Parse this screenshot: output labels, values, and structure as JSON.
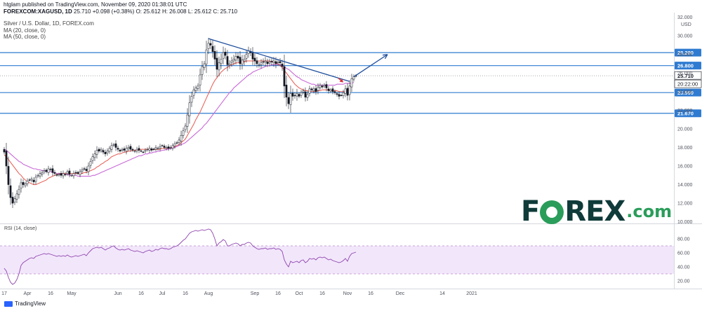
{
  "header": {
    "published": "htglam published on TradingView.com, November 09, 2020 01:38:01 UTC",
    "symbol": "FOREXCOM:XAGUSD, 1D",
    "last": "25.710",
    "change": "+0.098 (+0.38%)",
    "ohlc": "O: 25.612 H: 26.008 L: 25.612 C: 25.710",
    "title": "Silver / U.S. Dollar, 1D, FOREX.com",
    "ma20_label": "MA (20, close, 0)",
    "ma50_label": "MA (50, close, 0)"
  },
  "footer": {
    "brand": "TradingView"
  },
  "watermark": {
    "text_a": "F",
    "text_b": "REX",
    "text_c": ".com"
  },
  "chart_data": {
    "type": "candlestick",
    "title": "Silver / U.S. Dollar, 1D, FOREX.com",
    "currency": "USD",
    "ylim": [
      9.9,
      32.2
    ],
    "y_ticks": [
      10,
      12,
      14,
      16,
      18,
      20,
      22,
      24,
      26,
      28,
      30,
      32
    ],
    "y_tick_labels": [
      "10.000",
      "12.000",
      "14.000",
      "16.000",
      "18.000",
      "20.000",
      "22.000",
      "24.000",
      "26.000",
      "28.000",
      "30.000",
      "32.000"
    ],
    "x_ticks": [
      {
        "label": "17",
        "i": 0
      },
      {
        "label": "Apr",
        "i": 11
      },
      {
        "label": "16",
        "i": 22
      },
      {
        "label": "May",
        "i": 32
      },
      {
        "label": "Jun",
        "i": 54
      },
      {
        "label": "16",
        "i": 65
      },
      {
        "label": "Jul",
        "i": 75
      },
      {
        "label": "16",
        "i": 86
      },
      {
        "label": "Aug",
        "i": 97
      },
      {
        "label": "Sep",
        "i": 119
      },
      {
        "label": "16",
        "i": 130
      },
      {
        "label": "Oct",
        "i": 140
      },
      {
        "label": "16",
        "i": 151
      },
      {
        "label": "Nov",
        "i": 163
      },
      {
        "label": "16",
        "i": 174
      },
      {
        "label": "Dec",
        "i": 188
      },
      {
        "label": "14",
        "i": 208
      },
      {
        "label": "2021",
        "i": 222
      }
    ],
    "close": [
      17.5,
      16.0,
      14.0,
      12.6,
      12.0,
      12.5,
      13.0,
      13.5,
      14.2,
      14.0,
      14.1,
      14.4,
      14.5,
      14.6,
      14.3,
      14.8,
      15.0,
      15.2,
      15.3,
      15.5,
      15.4,
      15.7,
      15.6,
      15.3,
      15.2,
      15.0,
      15.1,
      15.0,
      15.2,
      15.1,
      15.4,
      15.1,
      15.0,
      15.2,
      15.3,
      15.2,
      15.4,
      15.6,
      15.7,
      15.5,
      16.0,
      16.5,
      17.0,
      17.3,
      17.7,
      17.6,
      17.8,
      17.5,
      17.3,
      17.6,
      17.9,
      18.2,
      18.3,
      18.0,
      17.8,
      17.6,
      17.8,
      17.7,
      17.9,
      18.0,
      17.8,
      17.7,
      17.6,
      17.8,
      17.7,
      17.6,
      17.5,
      17.7,
      17.8,
      17.9,
      17.7,
      17.8,
      18.0,
      17.9,
      18.1,
      18.2,
      18.0,
      18.0,
      17.9,
      18.0,
      18.2,
      18.4,
      18.5,
      18.8,
      19.3,
      19.8,
      20.3,
      21.5,
      22.8,
      23.5,
      24.2,
      24.4,
      24.6,
      25.8,
      26.7,
      27.0,
      28.5,
      29.2,
      29.0,
      28.3,
      27.5,
      26.4,
      27.1,
      27.5,
      28.2,
      27.9,
      26.9,
      27.0,
      27.3,
      27.5,
      27.8,
      27.6,
      27.0,
      27.4,
      27.5,
      28.0,
      28.4,
      28.2,
      27.5,
      27.3,
      27.0,
      26.9,
      27.1,
      27.2,
      27.3,
      27.0,
      27.2,
      27.2,
      27.3,
      27.0,
      27.2,
      27.1,
      26.7,
      24.6,
      23.4,
      22.7,
      23.8,
      23.5,
      23.6,
      23.8,
      23.5,
      23.9,
      24.1,
      23.4,
      23.7,
      24.3,
      24.2,
      24.3,
      24.0,
      24.5,
      24.7,
      24.5,
      24.7,
      24.4,
      24.1,
      24.2,
      24.0,
      23.9,
      23.7,
      23.5,
      23.6,
      23.9,
      24.3,
      23.6,
      24.6,
      25.4,
      25.6,
      25.7
    ],
    "ma20": [
      17.2,
      17.0,
      16.7,
      16.4,
      16.1,
      15.8,
      15.5,
      15.2,
      15.0,
      14.7,
      14.5,
      14.3,
      14.2,
      14.1,
      14.0,
      14.0,
      14.1,
      14.2,
      14.3,
      14.4,
      14.5,
      14.7,
      14.8,
      14.9,
      15.0,
      15.1,
      15.1,
      15.2,
      15.2,
      15.2,
      15.2,
      15.2,
      15.2,
      15.2,
      15.2,
      15.2,
      15.2,
      15.2,
      15.3,
      15.3,
      15.4,
      15.5,
      15.6,
      15.7,
      15.9,
      16.0,
      16.2,
      16.3,
      16.5,
      16.6,
      16.8,
      17.0,
      17.1,
      17.2,
      17.3,
      17.3,
      17.4,
      17.5,
      17.5,
      17.6,
      17.6,
      17.7,
      17.7,
      17.7,
      17.7,
      17.8,
      17.8,
      17.8,
      17.8,
      17.8,
      17.8,
      17.8,
      17.8,
      17.8,
      17.8,
      17.9,
      17.9,
      17.9,
      17.9,
      18.0,
      18.0,
      18.1,
      18.2,
      18.3,
      18.5,
      18.7,
      18.9,
      19.3,
      19.7,
      20.1,
      20.5,
      21.0,
      21.4,
      21.8,
      22.3,
      22.8,
      23.3,
      23.8,
      24.3,
      24.8,
      25.2,
      25.5,
      25.8,
      26.1,
      26.3,
      26.5,
      26.6,
      26.8,
      26.9,
      27.0,
      27.1,
      27.1,
      27.2,
      27.2,
      27.2,
      27.3,
      27.3,
      27.3,
      27.3,
      27.3,
      27.3,
      27.3,
      27.3,
      27.3,
      27.3,
      27.3,
      27.3,
      27.2,
      27.2,
      27.1,
      27.0,
      26.8,
      26.6,
      26.3,
      26.0,
      25.7,
      25.4,
      25.1,
      24.8,
      24.6,
      24.4,
      24.3,
      24.2,
      24.1,
      24.1,
      24.0,
      24.0,
      24.0,
      24.0,
      24.1,
      24.1,
      24.2,
      24.2,
      24.2,
      24.2,
      24.2,
      24.1,
      24.1,
      24.1,
      24.0,
      24.0,
      24.0,
      24.0,
      24.1,
      24.2
    ],
    "ma50": [
      17.8,
      17.7,
      17.5,
      17.3,
      17.1,
      16.9,
      16.7,
      16.5,
      16.4,
      16.2,
      16.1,
      16.0,
      15.9,
      15.8,
      15.7,
      15.7,
      15.6,
      15.6,
      15.5,
      15.5,
      15.4,
      15.4,
      15.4,
      15.3,
      15.3,
      15.2,
      15.2,
      15.2,
      15.1,
      15.1,
      15.1,
      15.0,
      15.0,
      15.0,
      15.0,
      14.9,
      14.9,
      14.9,
      14.9,
      14.9,
      14.9,
      14.9,
      15.0,
      15.0,
      15.1,
      15.2,
      15.3,
      15.4,
      15.5,
      15.6,
      15.7,
      15.8,
      15.9,
      16.0,
      16.1,
      16.2,
      16.3,
      16.4,
      16.5,
      16.6,
      16.7,
      16.8,
      16.9,
      17.0,
      17.1,
      17.1,
      17.2,
      17.3,
      17.3,
      17.4,
      17.4,
      17.5,
      17.5,
      17.6,
      17.6,
      17.7,
      17.7,
      17.8,
      17.8,
      17.9,
      17.9,
      18.0,
      18.1,
      18.2,
      18.3,
      18.4,
      18.5,
      18.7,
      18.9,
      19.1,
      19.3,
      19.5,
      19.7,
      19.9,
      20.1,
      20.4,
      20.6,
      20.9,
      21.2,
      21.5,
      21.8,
      22.1,
      22.4,
      22.7,
      23.0,
      23.3,
      23.6,
      23.9,
      24.1,
      24.4,
      24.6,
      24.8,
      25.0,
      25.2,
      25.4,
      25.6,
      25.8,
      25.9,
      26.1,
      26.2,
      26.3,
      26.4,
      26.5,
      26.6,
      26.7,
      26.8,
      26.8,
      26.9,
      26.9,
      26.9,
      26.9,
      26.9,
      26.8,
      26.7,
      26.5,
      26.4,
      26.2,
      26.0,
      25.8,
      25.6,
      25.5,
      25.3,
      25.2,
      25.1,
      25.0,
      24.9,
      24.8,
      24.8,
      24.7,
      24.7,
      24.7,
      24.7,
      24.7,
      24.7,
      24.7,
      24.7,
      24.7,
      24.7,
      24.8,
      24.8,
      24.8,
      24.8,
      24.9,
      24.9,
      24.9,
      24.9,
      25.0
    ],
    "horizontal_levels": [
      {
        "value": 28.2,
        "label": "28.200"
      },
      {
        "value": 26.8,
        "label": "26.800"
      },
      {
        "value": 23.9,
        "label": "23.900"
      },
      {
        "value": 21.67,
        "label": "21.670"
      }
    ],
    "price_marker": {
      "value": 25.71,
      "label": "25.710",
      "time_label": "20:22:00"
    },
    "trendline": {
      "from": {
        "i": 97,
        "value": 29.7
      },
      "to": {
        "i": 164,
        "value": 25.1
      }
    },
    "projection_arrow": {
      "from": {
        "i": 166,
        "value": 25.6
      },
      "to": {
        "i": 182,
        "value": 28.0
      }
    },
    "signal_arrow": {
      "at": {
        "i": 161,
        "value": 25.0
      }
    },
    "rsi": {
      "label": "RSI (14, close)",
      "ylim": [
        13,
        100
      ],
      "ticks": [
        20,
        40,
        60,
        80
      ],
      "tick_labels": [
        "20.00",
        "40.00",
        "60.00",
        "80.00"
      ],
      "band": [
        30,
        70
      ],
      "values": [
        38,
        34,
        25,
        18,
        15,
        17,
        22,
        30,
        42,
        46,
        48,
        50,
        52,
        53,
        52,
        55,
        56,
        57,
        58,
        59,
        58,
        59,
        58,
        57,
        56,
        55,
        56,
        55,
        56,
        55,
        57,
        55,
        54,
        55,
        56,
        55,
        56,
        57,
        58,
        56,
        60,
        63,
        66,
        67,
        68,
        67,
        68,
        66,
        64,
        66,
        67,
        69,
        70,
        67,
        65,
        64,
        65,
        64,
        65,
        66,
        64,
        63,
        62,
        63,
        62,
        61,
        60,
        62,
        63,
        64,
        62,
        63,
        65,
        64,
        66,
        67,
        66,
        66,
        65,
        66,
        68,
        69,
        70,
        72,
        75,
        78,
        80,
        84,
        88,
        90,
        91,
        92,
        91,
        92,
        93,
        92,
        93,
        94,
        93,
        88,
        80,
        70,
        74,
        76,
        79,
        77,
        70,
        70,
        72,
        73,
        74,
        73,
        70,
        72,
        72,
        74,
        75,
        74,
        70,
        68,
        66,
        65,
        66,
        66,
        67,
        65,
        66,
        66,
        67,
        65,
        66,
        65,
        62,
        50,
        44,
        40,
        48,
        46,
        47,
        48,
        46,
        49,
        50,
        46,
        48,
        52,
        51,
        52,
        50,
        53,
        54,
        53,
        54,
        52,
        50,
        51,
        49,
        48,
        47,
        46,
        47,
        49,
        52,
        48,
        55,
        59,
        60,
        61
      ]
    },
    "price_axis_unit": "USD"
  }
}
